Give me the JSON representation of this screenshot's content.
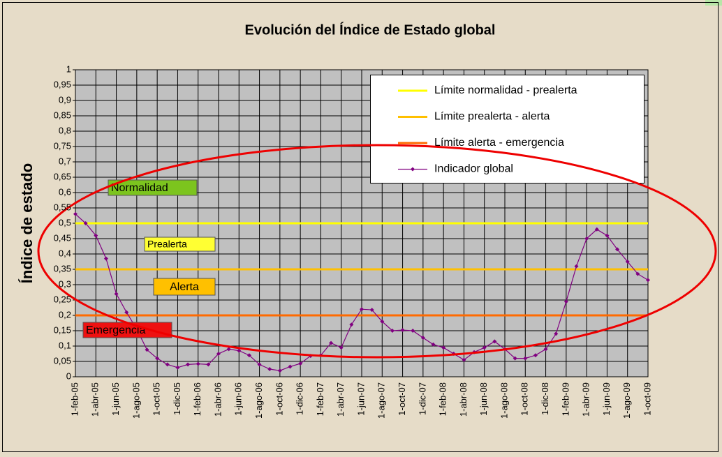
{
  "chart_data": {
    "type": "line",
    "title": "Evolución del Índice de Estado global",
    "y_label": "Índice de estado",
    "categories": [
      "1-feb-05",
      null,
      "1-abr-05",
      null,
      "1-jun-05",
      null,
      "1-ago-05",
      null,
      "1-oct-05",
      null,
      "1-dic-05",
      null,
      "1-feb-06",
      null,
      "1-abr-06",
      null,
      "1-jun-06",
      null,
      "1-ago-06",
      null,
      "1-oct-06",
      null,
      "1-dic-06",
      null,
      "1-feb-07",
      null,
      "1-abr-07",
      null,
      "1-jun-07",
      null,
      "1-ago-07",
      null,
      "1-oct-07",
      null,
      "1-dic-07",
      null,
      "1-feb-08",
      null,
      "1-abr-08",
      null,
      "1-jun-08",
      null,
      "1-ago-08",
      null,
      "1-oct-08",
      null,
      "1-dic-08",
      null,
      "1-feb-09",
      null,
      "1-abr-09",
      null,
      "1-jun-09",
      null,
      "1-ago-09",
      null,
      "1-oct-09"
    ],
    "series": [
      {
        "name": "Límite normalidad - prealerta",
        "color": "#ffff00",
        "values": [
          0.5,
          0.5,
          0.5,
          0.5,
          0.5,
          0.5,
          0.5,
          0.5,
          0.5,
          0.5,
          0.5,
          0.5,
          0.5,
          0.5,
          0.5,
          0.5,
          0.5,
          0.5,
          0.5,
          0.5,
          0.5,
          0.5,
          0.5,
          0.5,
          0.5,
          0.5,
          0.5,
          0.5,
          0.5,
          0.5,
          0.5,
          0.5,
          0.5,
          0.5,
          0.5,
          0.5,
          0.5,
          0.5,
          0.5,
          0.5,
          0.5,
          0.5,
          0.5,
          0.5,
          0.5,
          0.5,
          0.5,
          0.5,
          0.5,
          0.5,
          0.5,
          0.5,
          0.5,
          0.5,
          0.5,
          0.5,
          0.5
        ]
      },
      {
        "name": "Límite prealerta - alerta",
        "color": "#ffc000",
        "values": [
          0.35,
          0.35,
          0.35,
          0.35,
          0.35,
          0.35,
          0.35,
          0.35,
          0.35,
          0.35,
          0.35,
          0.35,
          0.35,
          0.35,
          0.35,
          0.35,
          0.35,
          0.35,
          0.35,
          0.35,
          0.35,
          0.35,
          0.35,
          0.35,
          0.35,
          0.35,
          0.35,
          0.35,
          0.35,
          0.35,
          0.35,
          0.35,
          0.35,
          0.35,
          0.35,
          0.35,
          0.35,
          0.35,
          0.35,
          0.35,
          0.35,
          0.35,
          0.35,
          0.35,
          0.35,
          0.35,
          0.35,
          0.35,
          0.35,
          0.35,
          0.35,
          0.35,
          0.35,
          0.35,
          0.35,
          0.35,
          0.35
        ]
      },
      {
        "name": "Límite alerta - emergencia",
        "color": "#ff6a00",
        "values": [
          0.2,
          0.2,
          0.2,
          0.2,
          0.2,
          0.2,
          0.2,
          0.2,
          0.2,
          0.2,
          0.2,
          0.2,
          0.2,
          0.2,
          0.2,
          0.2,
          0.2,
          0.2,
          0.2,
          0.2,
          0.2,
          0.2,
          0.2,
          0.2,
          0.2,
          0.2,
          0.2,
          0.2,
          0.2,
          0.2,
          0.2,
          0.2,
          0.2,
          0.2,
          0.2,
          0.2,
          0.2,
          0.2,
          0.2,
          0.2,
          0.2,
          0.2,
          0.2,
          0.2,
          0.2,
          0.2,
          0.2,
          0.2,
          0.2,
          0.2,
          0.2,
          0.2,
          0.2,
          0.2,
          0.2,
          0.2,
          0.2
        ]
      },
      {
        "name": "Indicador global",
        "color": "#800080",
        "marker": true,
        "values": [
          0.53,
          0.5,
          0.46,
          0.385,
          0.27,
          0.21,
          0.155,
          0.088,
          0.06,
          0.04,
          0.03,
          0.04,
          0.042,
          0.04,
          0.075,
          0.09,
          0.085,
          0.07,
          0.04,
          0.025,
          0.02,
          0.033,
          0.043,
          0.068,
          0.07,
          0.11,
          0.095,
          0.17,
          0.22,
          0.218,
          0.18,
          0.15,
          0.152,
          0.15,
          0.127,
          0.105,
          0.095,
          0.075,
          0.055,
          0.08,
          0.095,
          0.115,
          0.09,
          0.06,
          0.06,
          0.07,
          0.09,
          0.14,
          0.245,
          0.36,
          0.45,
          0.48,
          0.46,
          0.415,
          0.375,
          0.335,
          0.315
        ]
      }
    ],
    "ylim": [
      0,
      1
    ],
    "yticks": [
      0,
      {
        "value": 0.05,
        "label": "0,05"
      },
      {
        "value": 0.1,
        "label": "0,1"
      },
      {
        "value": 0.15,
        "label": "0,15"
      },
      {
        "value": 0.2,
        "label": "0,2"
      },
      {
        "value": 0.25,
        "label": "0,25"
      },
      {
        "value": 0.3,
        "label": "0,3"
      },
      {
        "value": 0.35,
        "label": "0,35"
      },
      {
        "value": 0.4,
        "label": "0,4"
      },
      {
        "value": 0.45,
        "label": "0,45"
      },
      {
        "value": 0.5,
        "label": "0,5"
      },
      {
        "value": 0.55,
        "label": "0,55"
      },
      {
        "value": 0.6,
        "label": "0,6"
      },
      {
        "value": 0.65,
        "label": "0,65"
      },
      {
        "value": 0.7,
        "label": "0,7"
      },
      {
        "value": 0.75,
        "label": "0,75"
      },
      {
        "value": 0.8,
        "label": "0,8"
      },
      {
        "value": 0.85,
        "label": "0,85"
      },
      {
        "value": 0.9,
        "label": "0,9"
      },
      {
        "value": 0.95,
        "label": "0,95"
      },
      1
    ],
    "grid": true,
    "legend": "top-right",
    "annotations": [
      {
        "text": "Normalidad",
        "color": "#7cc41e"
      },
      {
        "text": "Prealerta",
        "color": "#ffff33"
      },
      {
        "text": "Alerta",
        "color": "#ffc000"
      },
      {
        "text": "Emergencia",
        "color": "#ee1111"
      }
    ]
  }
}
